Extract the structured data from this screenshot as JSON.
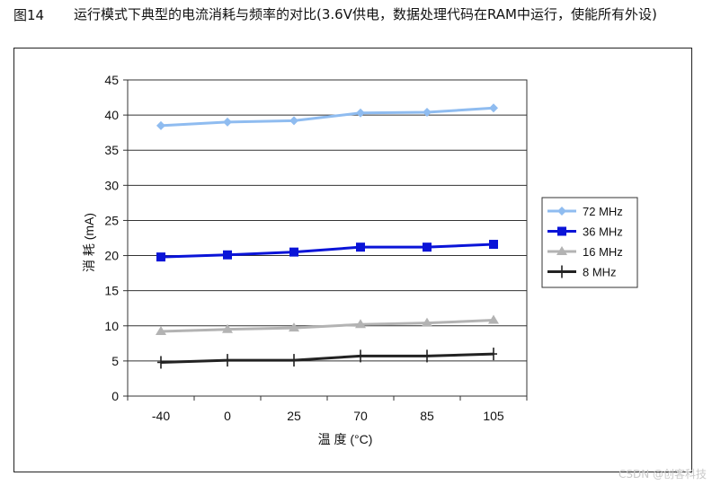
{
  "figure": {
    "label": "图14",
    "caption": "运行模式下典型的电流消耗与频率的对比(3.6V供电，数据处理代码在RAM中运行，使能所有外设)"
  },
  "watermark": "CSDN @创客科技",
  "chart_data": {
    "type": "line",
    "title": "",
    "xlabel": "温 度 (°C)",
    "ylabel": "消 耗 (mA)",
    "categories": [
      "-40",
      "0",
      "25",
      "70",
      "85",
      "105"
    ],
    "ylim": [
      0,
      45
    ],
    "yticks": [
      0,
      5,
      10,
      15,
      20,
      25,
      30,
      35,
      40,
      45
    ],
    "grid": true,
    "legend_position": "right",
    "series": [
      {
        "name": "72 MHz",
        "color": "#8fbcf0",
        "marker": "diamond",
        "values": [
          38.5,
          39.0,
          39.2,
          40.3,
          40.4,
          41.0
        ]
      },
      {
        "name": "36 MHz",
        "color": "#0a14d8",
        "marker": "square",
        "values": [
          19.8,
          20.1,
          20.5,
          21.2,
          21.2,
          21.6
        ]
      },
      {
        "name": "16 MHz",
        "color": "#b3b3b3",
        "marker": "triangle",
        "values": [
          9.2,
          9.5,
          9.7,
          10.2,
          10.4,
          10.8
        ]
      },
      {
        "name": "8 MHz",
        "color": "#222222",
        "marker": "plus",
        "values": [
          4.8,
          5.1,
          5.1,
          5.7,
          5.7,
          6.0
        ]
      }
    ]
  }
}
